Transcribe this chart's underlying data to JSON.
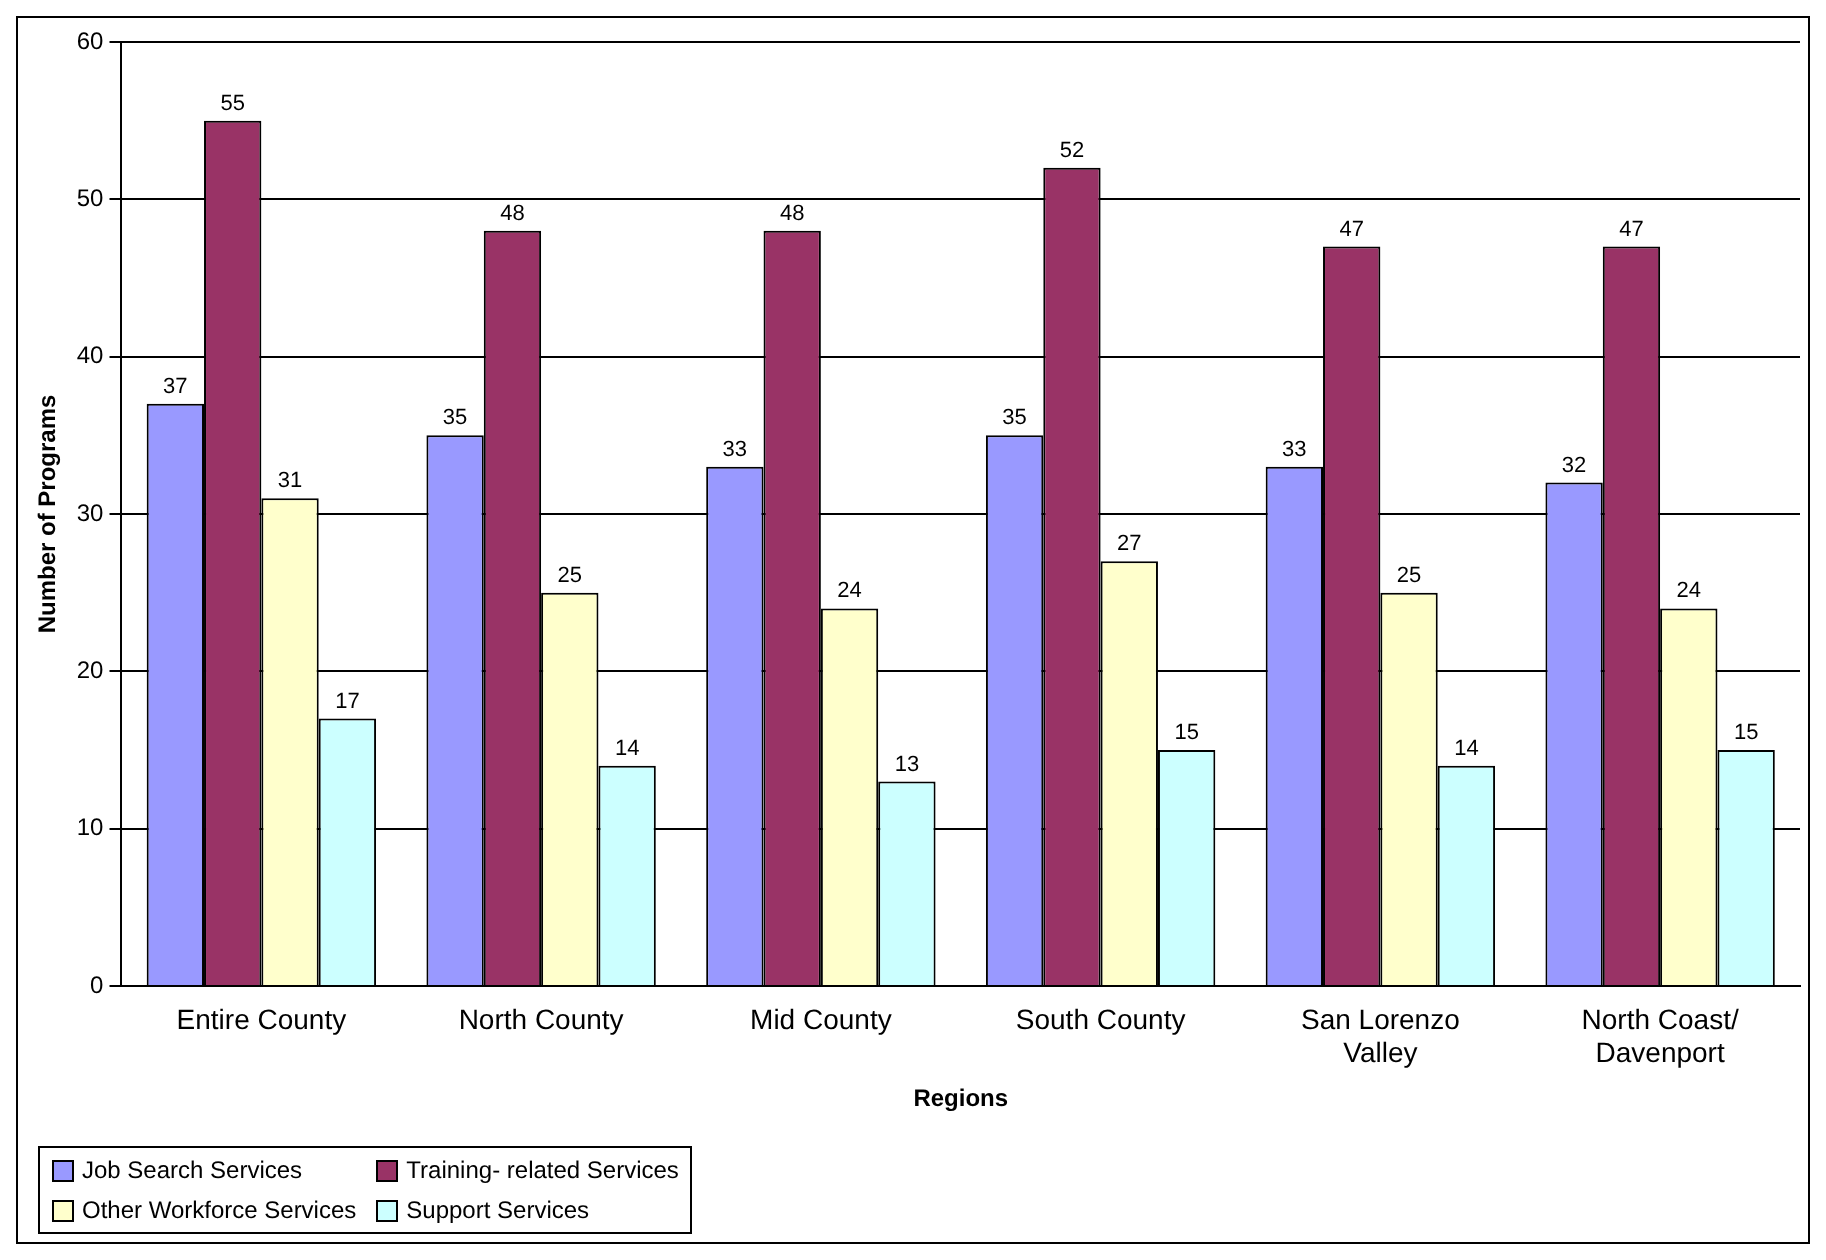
{
  "chart_data": {
    "type": "bar",
    "xlabel": "Regions",
    "ylabel": "Number of Programs",
    "categories": [
      "Entire County",
      "North County",
      "Mid County",
      "South County",
      "San Lorenzo Valley",
      "North Coast/ Davenport"
    ],
    "series": [
      {
        "name": "Job Search Services",
        "color": "#9999ff",
        "values": [
          37,
          35,
          33,
          35,
          33,
          32
        ]
      },
      {
        "name": "Training- related Services",
        "color": "#993366",
        "values": [
          55,
          48,
          48,
          52,
          47,
          47
        ]
      },
      {
        "name": "Other Workforce Services",
        "color": "#ffffcc",
        "values": [
          31,
          25,
          24,
          27,
          25,
          24
        ]
      },
      {
        "name": "Support Services",
        "color": "#ccffff",
        "values": [
          17,
          14,
          13,
          15,
          14,
          15
        ]
      }
    ],
    "ylim": [
      0,
      60
    ],
    "yticks": [
      0,
      10,
      20,
      30,
      40,
      50,
      60
    ],
    "grid": "y",
    "legend": "bottom left",
    "data_labels": true
  }
}
